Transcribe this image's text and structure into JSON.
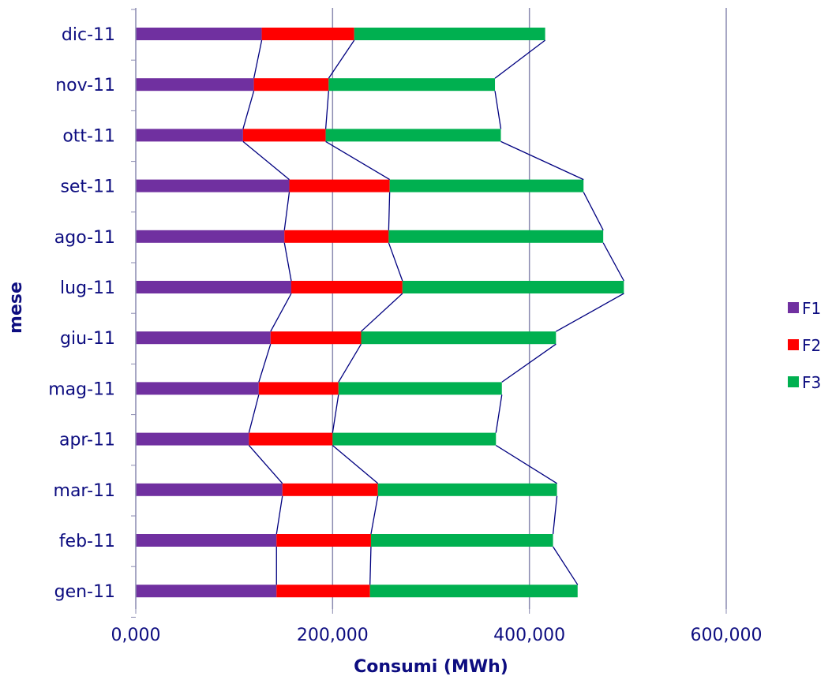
{
  "chart_data": {
    "type": "bar",
    "orientation": "horizontal",
    "stacked": true,
    "series_lines": true,
    "categories": [
      "gen-11",
      "feb-11",
      "mar-11",
      "apr-11",
      "mag-11",
      "giu-11",
      "lug-11",
      "ago-11",
      "set-11",
      "ott-11",
      "nov-11",
      "dic-11"
    ],
    "series": [
      {
        "name": "F1",
        "color": "#7030a0",
        "values": [
          143000,
          143000,
          149000,
          115000,
          125000,
          137000,
          158000,
          151000,
          156000,
          109000,
          120000,
          128000
        ]
      },
      {
        "name": "F2",
        "color": "#ff0000",
        "values": [
          95000,
          96000,
          97000,
          85000,
          81000,
          92000,
          113000,
          106000,
          102000,
          84000,
          76000,
          94000
        ]
      },
      {
        "name": "F3",
        "color": "#00b050",
        "values": [
          211000,
          185000,
          182000,
          166000,
          166000,
          198000,
          225000,
          218000,
          197000,
          178000,
          169000,
          194000
        ]
      }
    ],
    "xlabel": "Consumi (MWh)",
    "ylabel": "mese",
    "xlim": [
      0,
      600000
    ],
    "x_ticks": [
      "0,000",
      "200,000",
      "400,000",
      "600,000"
    ],
    "grid": true,
    "legend_position": "right",
    "line_color": "#000080"
  }
}
